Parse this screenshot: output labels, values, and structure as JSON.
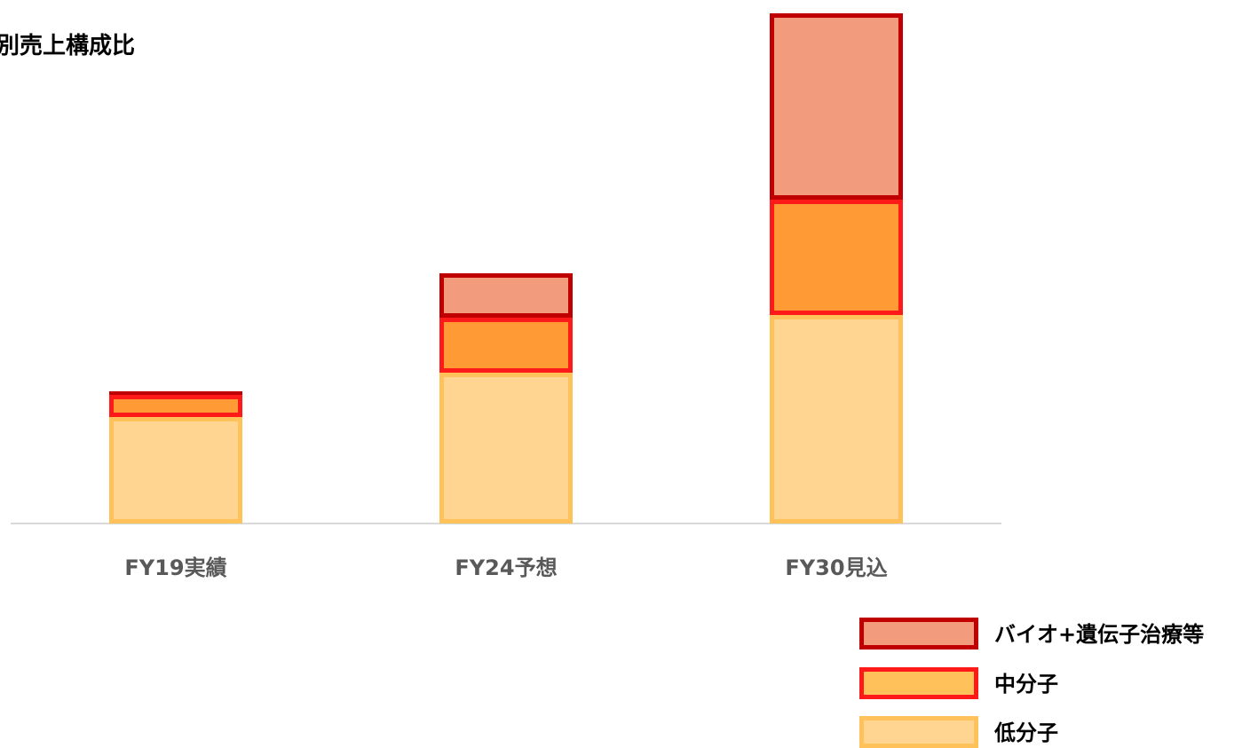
{
  "chart_data": {
    "type": "bar",
    "stacked": true,
    "title": "別売上構成比",
    "categories": [
      "FY19実績",
      "FY24予想",
      "FY30見込"
    ],
    "series": [
      {
        "name": "低分子",
        "values": [
          120,
          170,
          235
        ],
        "fill": "#FFD591",
        "stroke": "#FFC15A"
      },
      {
        "name": "中分子",
        "values": [
          25,
          62,
          130
        ],
        "fill": "#FF9A35",
        "stroke": "#FF1A1A"
      },
      {
        "name": "バイオ+遺伝子治療等",
        "values": [
          4,
          50,
          210
        ],
        "fill": "#F29B7D",
        "stroke": "#C00000"
      }
    ],
    "legend_entries": [
      {
        "name": "バイオ+遺伝子治療等",
        "fill": "#F29B7D",
        "stroke": "#C00000"
      },
      {
        "name": "中分子",
        "fill": "#FFC15A",
        "stroke": "#FF1A1A"
      },
      {
        "name": "低分子",
        "fill": "#FFD591",
        "stroke": "#FFC15A"
      }
    ],
    "ylim": [
      0,
      580
    ],
    "xlabel": "",
    "ylabel": "",
    "grid": false,
    "legend_position": "bottom-right"
  }
}
